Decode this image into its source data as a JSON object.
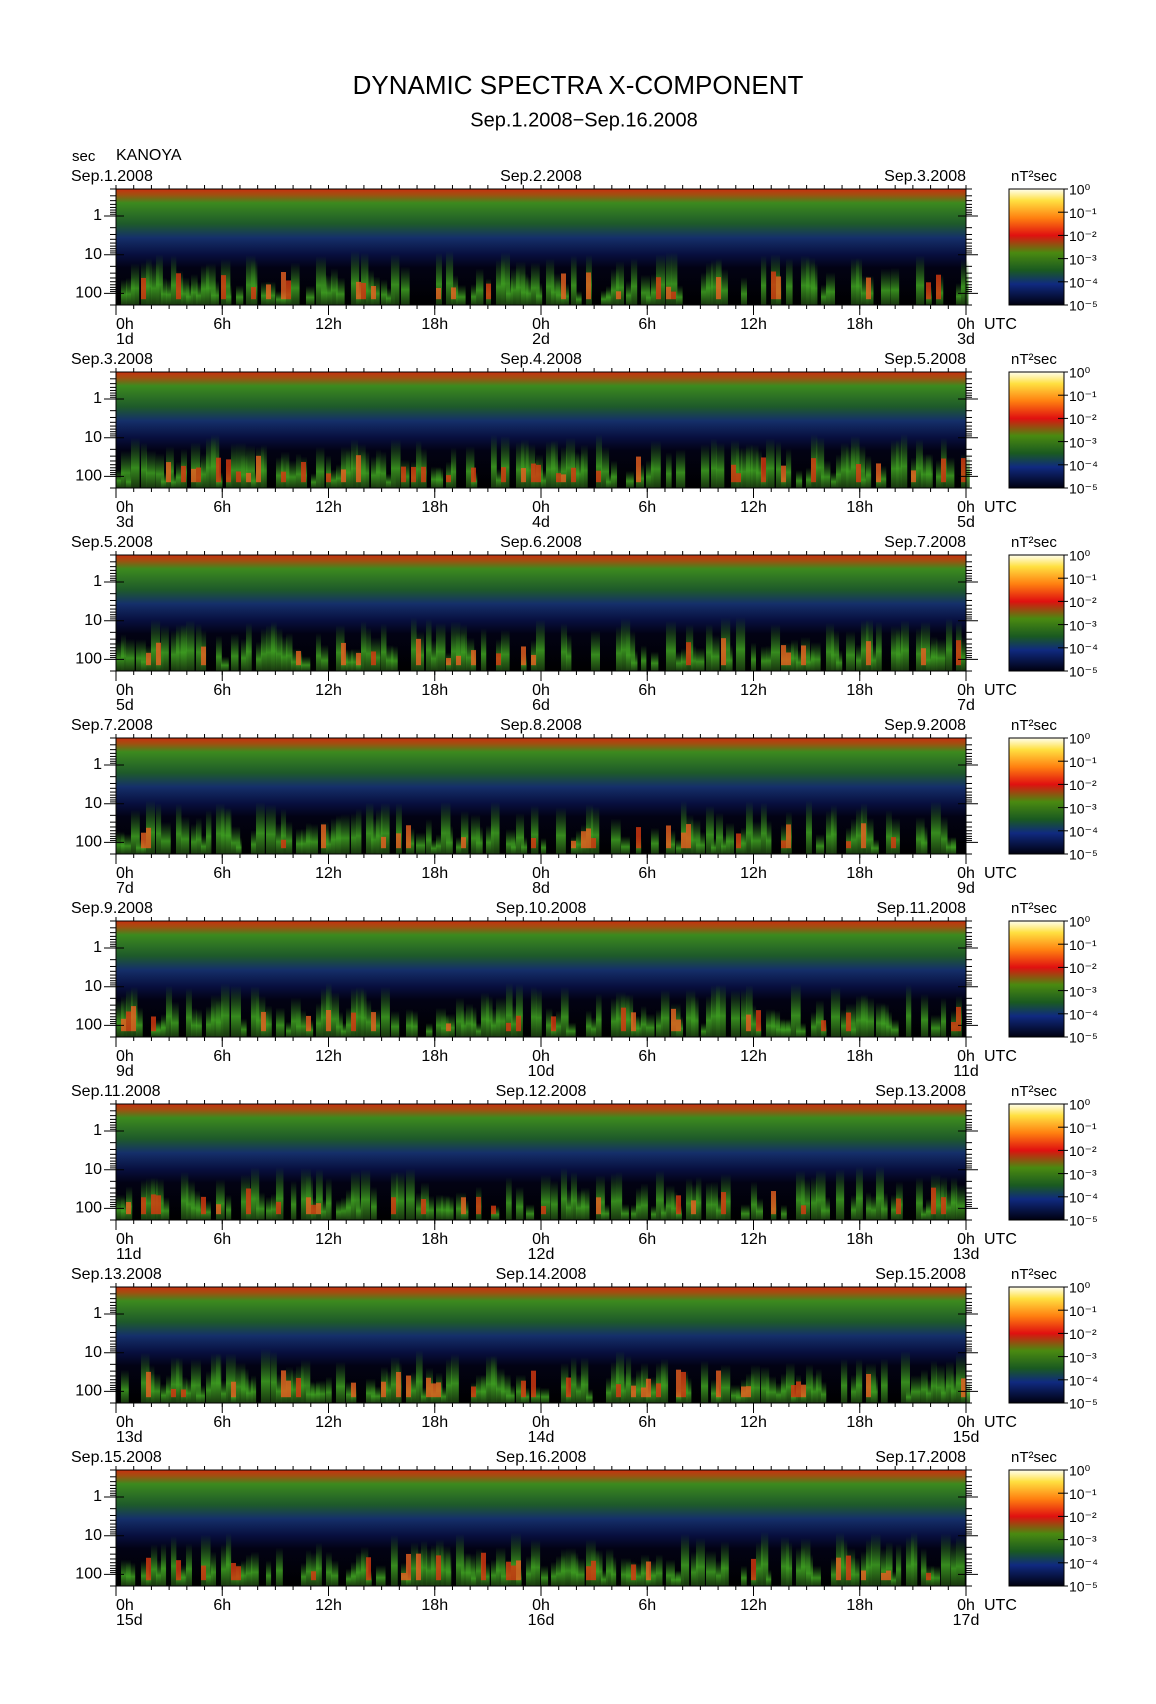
{
  "title": "DYNAMIC SPECTRA X-COMPONENT",
  "subtitle": "Sep.1.2008−Sep.16.2008",
  "y_unit": "sec",
  "station": "KANOYA",
  "x_unit": "UTC",
  "colorbar": {
    "unit": "nT²sec",
    "lim": [
      1e-05,
      1
    ],
    "log_scale": true,
    "ticks": [
      {
        "value": 1,
        "label": "10⁰"
      },
      {
        "value": 0.1,
        "label": "10⁻¹"
      },
      {
        "value": 0.01,
        "label": "10⁻²"
      },
      {
        "value": 0.001,
        "label": "10⁻³"
      },
      {
        "value": 0.0001,
        "label": "10⁻⁴"
      },
      {
        "value": 1e-05,
        "label": "10⁻⁵"
      }
    ]
  },
  "chart_data": [
    {
      "type": "spectrogram",
      "log_scale": true,
      "ylim": [
        0.2,
        200
      ],
      "yticks": [
        1,
        10,
        100
      ],
      "xlim": [
        0,
        48
      ],
      "xticks": [
        {
          "value": 0,
          "label": "0h"
        },
        {
          "value": 6,
          "label": "6h"
        },
        {
          "value": 12,
          "label": "12h"
        },
        {
          "value": 18,
          "label": "18h"
        },
        {
          "value": 24,
          "label": "0h"
        },
        {
          "value": 30,
          "label": "6h"
        },
        {
          "value": 36,
          "label": "12h"
        },
        {
          "value": 42,
          "label": "18h"
        },
        {
          "value": 48,
          "label": "0h"
        }
      ],
      "dates": [
        {
          "value": 0,
          "label": "Sep.1.2008"
        },
        {
          "value": 24,
          "label": "Sep.2.2008"
        },
        {
          "value": 48,
          "label": "Sep.3.2008"
        }
      ],
      "days": [
        {
          "value": 0,
          "label": "1d"
        },
        {
          "value": 24,
          "label": "2d"
        },
        {
          "value": 48,
          "label": "3d"
        }
      ]
    },
    {
      "type": "spectrogram",
      "log_scale": true,
      "ylim": [
        0.2,
        200
      ],
      "yticks": [
        1,
        10,
        100
      ],
      "xlim": [
        0,
        48
      ],
      "xticks": [
        {
          "value": 0,
          "label": "0h"
        },
        {
          "value": 6,
          "label": "6h"
        },
        {
          "value": 12,
          "label": "12h"
        },
        {
          "value": 18,
          "label": "18h"
        },
        {
          "value": 24,
          "label": "0h"
        },
        {
          "value": 30,
          "label": "6h"
        },
        {
          "value": 36,
          "label": "12h"
        },
        {
          "value": 42,
          "label": "18h"
        },
        {
          "value": 48,
          "label": "0h"
        }
      ],
      "dates": [
        {
          "value": 0,
          "label": "Sep.3.2008"
        },
        {
          "value": 24,
          "label": "Sep.4.2008"
        },
        {
          "value": 48,
          "label": "Sep.5.2008"
        }
      ],
      "days": [
        {
          "value": 0,
          "label": "3d"
        },
        {
          "value": 24,
          "label": "4d"
        },
        {
          "value": 48,
          "label": "5d"
        }
      ]
    },
    {
      "type": "spectrogram",
      "log_scale": true,
      "ylim": [
        0.2,
        200
      ],
      "yticks": [
        1,
        10,
        100
      ],
      "xlim": [
        0,
        48
      ],
      "xticks": [
        {
          "value": 0,
          "label": "0h"
        },
        {
          "value": 6,
          "label": "6h"
        },
        {
          "value": 12,
          "label": "12h"
        },
        {
          "value": 18,
          "label": "18h"
        },
        {
          "value": 24,
          "label": "0h"
        },
        {
          "value": 30,
          "label": "6h"
        },
        {
          "value": 36,
          "label": "12h"
        },
        {
          "value": 42,
          "label": "18h"
        },
        {
          "value": 48,
          "label": "0h"
        }
      ],
      "dates": [
        {
          "value": 0,
          "label": "Sep.5.2008"
        },
        {
          "value": 24,
          "label": "Sep.6.2008"
        },
        {
          "value": 48,
          "label": "Sep.7.2008"
        }
      ],
      "days": [
        {
          "value": 0,
          "label": "5d"
        },
        {
          "value": 24,
          "label": "6d"
        },
        {
          "value": 48,
          "label": "7d"
        }
      ]
    },
    {
      "type": "spectrogram",
      "log_scale": true,
      "ylim": [
        0.2,
        200
      ],
      "yticks": [
        1,
        10,
        100
      ],
      "xlim": [
        0,
        48
      ],
      "xticks": [
        {
          "value": 0,
          "label": "0h"
        },
        {
          "value": 6,
          "label": "6h"
        },
        {
          "value": 12,
          "label": "12h"
        },
        {
          "value": 18,
          "label": "18h"
        },
        {
          "value": 24,
          "label": "0h"
        },
        {
          "value": 30,
          "label": "6h"
        },
        {
          "value": 36,
          "label": "12h"
        },
        {
          "value": 42,
          "label": "18h"
        },
        {
          "value": 48,
          "label": "0h"
        }
      ],
      "dates": [
        {
          "value": 0,
          "label": "Sep.7.2008"
        },
        {
          "value": 24,
          "label": "Sep.8.2008"
        },
        {
          "value": 48,
          "label": "Sep.9.2008"
        }
      ],
      "days": [
        {
          "value": 0,
          "label": "7d"
        },
        {
          "value": 24,
          "label": "8d"
        },
        {
          "value": 48,
          "label": "9d"
        }
      ]
    },
    {
      "type": "spectrogram",
      "log_scale": true,
      "ylim": [
        0.2,
        200
      ],
      "yticks": [
        1,
        10,
        100
      ],
      "xlim": [
        0,
        48
      ],
      "xticks": [
        {
          "value": 0,
          "label": "0h"
        },
        {
          "value": 6,
          "label": "6h"
        },
        {
          "value": 12,
          "label": "12h"
        },
        {
          "value": 18,
          "label": "18h"
        },
        {
          "value": 24,
          "label": "0h"
        },
        {
          "value": 30,
          "label": "6h"
        },
        {
          "value": 36,
          "label": "12h"
        },
        {
          "value": 42,
          "label": "18h"
        },
        {
          "value": 48,
          "label": "0h"
        }
      ],
      "dates": [
        {
          "value": 0,
          "label": "Sep.9.2008"
        },
        {
          "value": 24,
          "label": "Sep.10.2008"
        },
        {
          "value": 48,
          "label": "Sep.11.2008"
        }
      ],
      "days": [
        {
          "value": 0,
          "label": "9d"
        },
        {
          "value": 24,
          "label": "10d"
        },
        {
          "value": 48,
          "label": "11d"
        }
      ]
    },
    {
      "type": "spectrogram",
      "log_scale": true,
      "ylim": [
        0.2,
        200
      ],
      "yticks": [
        1,
        10,
        100
      ],
      "xlim": [
        0,
        48
      ],
      "xticks": [
        {
          "value": 0,
          "label": "0h"
        },
        {
          "value": 6,
          "label": "6h"
        },
        {
          "value": 12,
          "label": "12h"
        },
        {
          "value": 18,
          "label": "18h"
        },
        {
          "value": 24,
          "label": "0h"
        },
        {
          "value": 30,
          "label": "6h"
        },
        {
          "value": 36,
          "label": "12h"
        },
        {
          "value": 42,
          "label": "18h"
        },
        {
          "value": 48,
          "label": "0h"
        }
      ],
      "dates": [
        {
          "value": 0,
          "label": "Sep.11.2008"
        },
        {
          "value": 24,
          "label": "Sep.12.2008"
        },
        {
          "value": 48,
          "label": "Sep.13.2008"
        }
      ],
      "days": [
        {
          "value": 0,
          "label": "11d"
        },
        {
          "value": 24,
          "label": "12d"
        },
        {
          "value": 48,
          "label": "13d"
        }
      ]
    },
    {
      "type": "spectrogram",
      "log_scale": true,
      "ylim": [
        0.2,
        200
      ],
      "yticks": [
        1,
        10,
        100
      ],
      "xlim": [
        0,
        48
      ],
      "xticks": [
        {
          "value": 0,
          "label": "0h"
        },
        {
          "value": 6,
          "label": "6h"
        },
        {
          "value": 12,
          "label": "12h"
        },
        {
          "value": 18,
          "label": "18h"
        },
        {
          "value": 24,
          "label": "0h"
        },
        {
          "value": 30,
          "label": "6h"
        },
        {
          "value": 36,
          "label": "12h"
        },
        {
          "value": 42,
          "label": "18h"
        },
        {
          "value": 48,
          "label": "0h"
        }
      ],
      "dates": [
        {
          "value": 0,
          "label": "Sep.13.2008"
        },
        {
          "value": 24,
          "label": "Sep.14.2008"
        },
        {
          "value": 48,
          "label": "Sep.15.2008"
        }
      ],
      "days": [
        {
          "value": 0,
          "label": "13d"
        },
        {
          "value": 24,
          "label": "14d"
        },
        {
          "value": 48,
          "label": "15d"
        }
      ]
    },
    {
      "type": "spectrogram",
      "log_scale": true,
      "ylim": [
        0.2,
        200
      ],
      "yticks": [
        1,
        10,
        100
      ],
      "xlim": [
        0,
        48
      ],
      "xticks": [
        {
          "value": 0,
          "label": "0h"
        },
        {
          "value": 6,
          "label": "6h"
        },
        {
          "value": 12,
          "label": "12h"
        },
        {
          "value": 18,
          "label": "18h"
        },
        {
          "value": 24,
          "label": "0h"
        },
        {
          "value": 30,
          "label": "6h"
        },
        {
          "value": 36,
          "label": "12h"
        },
        {
          "value": 42,
          "label": "18h"
        },
        {
          "value": 48,
          "label": "0h"
        }
      ],
      "dates": [
        {
          "value": 0,
          "label": "Sep.15.2008"
        },
        {
          "value": 24,
          "label": "Sep.16.2008"
        },
        {
          "value": 48,
          "label": "Sep.17.2008"
        }
      ],
      "days": [
        {
          "value": 0,
          "label": "15d"
        },
        {
          "value": 24,
          "label": "16d"
        },
        {
          "value": 48,
          "label": "17d"
        }
      ]
    }
  ]
}
